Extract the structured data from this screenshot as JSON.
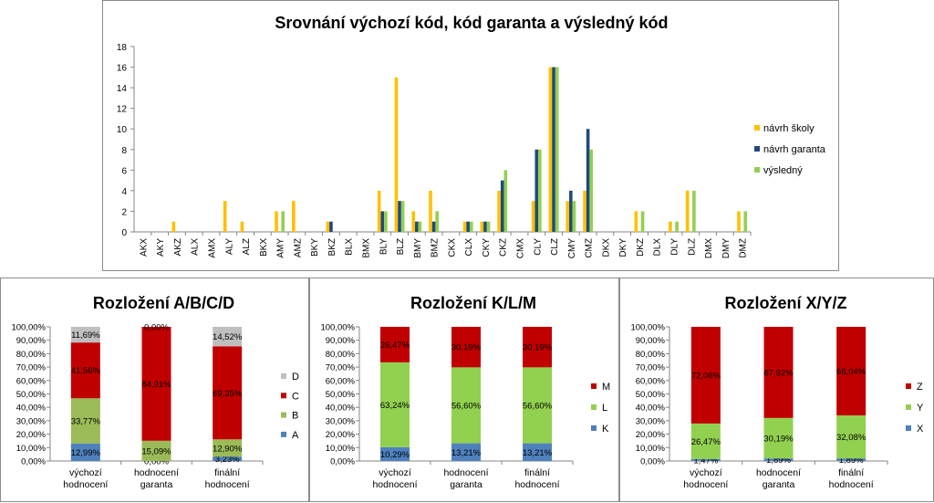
{
  "chart_data": [
    {
      "type": "bar",
      "title": "Srovnání výchozí kód, kód garanta a výsledný kód",
      "ylim": [
        0,
        18
      ],
      "yticks": [
        0,
        2,
        4,
        6,
        8,
        10,
        12,
        14,
        16,
        18
      ],
      "categories": [
        "AKX",
        "AKY",
        "AKZ",
        "ALX",
        "AMX",
        "ALY",
        "ALZ",
        "BKX",
        "AMY",
        "AMZ",
        "BKY",
        "BKZ",
        "BLX",
        "BMX",
        "BLY",
        "BLZ",
        "BMY",
        "BMZ",
        "CKX",
        "CLX",
        "CKY",
        "CKZ",
        "CMX",
        "CLY",
        "CLZ",
        "CMY",
        "CMZ",
        "DKX",
        "DKY",
        "DKZ",
        "DLX",
        "DLY",
        "DLZ",
        "DMX",
        "DMY",
        "DMZ"
      ],
      "series": [
        {
          "name": "návrh školy",
          "color": "#ffc000",
          "values": [
            0,
            0,
            1,
            0,
            0,
            3,
            1,
            0,
            2,
            3,
            0,
            1,
            0,
            0,
            4,
            15,
            2,
            4,
            0,
            1,
            1,
            4,
            0,
            3,
            16,
            3,
            4,
            0,
            0,
            2,
            0,
            1,
            4,
            0,
            0,
            2
          ]
        },
        {
          "name": "návrh garanta",
          "color": "#1f497d",
          "values": [
            0,
            0,
            0,
            0,
            0,
            0,
            0,
            0,
            0,
            0,
            0,
            1,
            0,
            0,
            2,
            3,
            1,
            1,
            0,
            1,
            1,
            5,
            0,
            8,
            16,
            4,
            10,
            0,
            0,
            0,
            0,
            0,
            0,
            0,
            0,
            0
          ]
        },
        {
          "name": "výsledný",
          "color": "#92d050",
          "values": [
            0,
            0,
            0,
            0,
            0,
            0,
            0,
            0,
            2,
            0,
            0,
            0,
            0,
            0,
            2,
            3,
            1,
            2,
            0,
            1,
            1,
            6,
            0,
            8,
            16,
            3,
            8,
            0,
            0,
            2,
            0,
            1,
            4,
            0,
            0,
            2
          ]
        }
      ],
      "legend": "right"
    },
    {
      "type": "bar",
      "stacked": "percent",
      "title": "Rozložení A/B/C/D",
      "categories": [
        [
          "výchozí",
          "hodnocení"
        ],
        [
          "hodnocení",
          "garanta"
        ],
        [
          "finální",
          "hodnocení"
        ]
      ],
      "yticks": [
        "0,00%",
        "10,00%",
        "20,00%",
        "30,00%",
        "40,00%",
        "50,00%",
        "60,00%",
        "70,00%",
        "80,00%",
        "90,00%",
        "100,00%"
      ],
      "series": [
        {
          "name": "A",
          "color": "#4f81bd",
          "values": [
            12.99,
            0.0,
            3.23
          ],
          "labels": [
            "12,99%",
            "0,00%",
            "3,23%"
          ]
        },
        {
          "name": "B",
          "color": "#9bbb59",
          "values": [
            33.77,
            15.09,
            12.9
          ],
          "labels": [
            "33,77%",
            "15,09%",
            "12,90%"
          ]
        },
        {
          "name": "C",
          "color": "#c00000",
          "values": [
            41.56,
            84.91,
            69.35
          ],
          "labels": [
            "41,56%",
            "84,91%",
            "69,35%"
          ]
        },
        {
          "name": "D",
          "color": "#bfbfbf",
          "values": [
            11.69,
            0.0,
            14.52
          ],
          "labels": [
            "11,69%",
            "0,00%",
            "14,52%"
          ]
        }
      ],
      "legend": "right"
    },
    {
      "type": "bar",
      "stacked": "percent",
      "title": "Rozložení K/L/M",
      "categories": [
        [
          "výchozí",
          "hodnocení"
        ],
        [
          "hodnocení",
          "garanta"
        ],
        [
          "finální",
          "hodnocení"
        ]
      ],
      "yticks": [
        "0,00%",
        "10,00%",
        "20,00%",
        "30,00%",
        "40,00%",
        "50,00%",
        "60,00%",
        "70,00%",
        "80,00%",
        "90,00%",
        "100,00%"
      ],
      "series": [
        {
          "name": "K",
          "color": "#4f81bd",
          "values": [
            10.29,
            13.21,
            13.21
          ],
          "labels": [
            "10,29%",
            "13,21%",
            "13,21%"
          ]
        },
        {
          "name": "L",
          "color": "#92d050",
          "values": [
            63.24,
            56.6,
            56.6
          ],
          "labels": [
            "63,24%",
            "56,60%",
            "56,60%"
          ]
        },
        {
          "name": "M",
          "color": "#c00000",
          "values": [
            26.47,
            30.19,
            30.19
          ],
          "labels": [
            "26,47%",
            "30,19%",
            "30,19%"
          ]
        }
      ],
      "legend": "right"
    },
    {
      "type": "bar",
      "stacked": "percent",
      "title": "Rozložení X/Y/Z",
      "categories": [
        [
          "výchozí",
          "hodnocení"
        ],
        [
          "hodnocení",
          "garanta"
        ],
        [
          "finální",
          "hodnocení"
        ]
      ],
      "yticks": [
        "0,00%",
        "10,00%",
        "20,00%",
        "30,00%",
        "40,00%",
        "50,00%",
        "60,00%",
        "70,00%",
        "80,00%",
        "90,00%",
        "100,00%"
      ],
      "series": [
        {
          "name": "X",
          "color": "#4f81bd",
          "values": [
            1.47,
            1.89,
            1.89
          ],
          "labels": [
            "1,47%",
            "1,89%",
            "1,89%"
          ]
        },
        {
          "name": "Y",
          "color": "#92d050",
          "values": [
            26.47,
            30.19,
            32.08
          ],
          "labels": [
            "26,47%",
            "30,19%",
            "32,08%"
          ]
        },
        {
          "name": "Z",
          "color": "#c00000",
          "values": [
            72.06,
            67.92,
            66.04
          ],
          "labels": [
            "72,06%",
            "67,92%",
            "66,04%"
          ]
        }
      ],
      "legend": "right"
    }
  ]
}
